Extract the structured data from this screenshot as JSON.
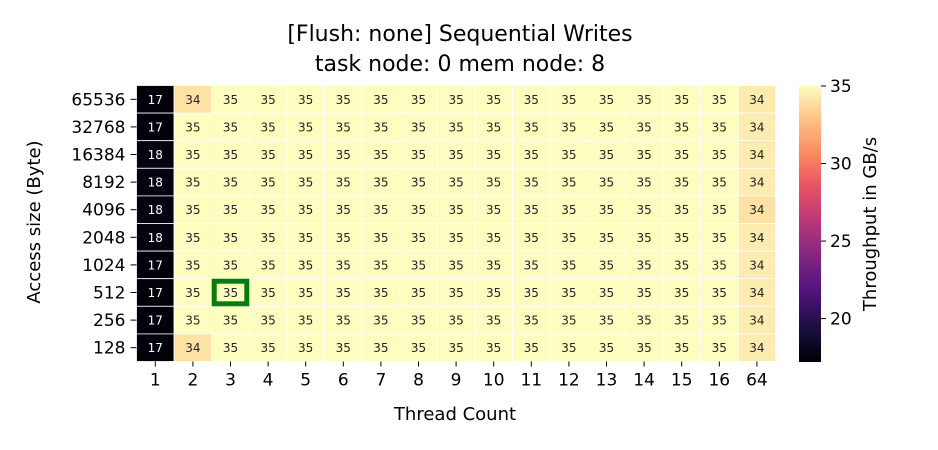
{
  "chart_data": {
    "type": "heatmap",
    "title": "[Flush: none] Sequential Writes",
    "subtitle": "task node: 0 mem node: 8",
    "xlabel": "Thread Count",
    "ylabel": "Access size (Byte)",
    "x_categories": [
      "1",
      "2",
      "3",
      "4",
      "5",
      "6",
      "7",
      "8",
      "9",
      "10",
      "11",
      "12",
      "13",
      "14",
      "15",
      "16",
      "64"
    ],
    "y_categories": [
      "65536",
      "32768",
      "16384",
      "8192",
      "4096",
      "2048",
      "1024",
      "512",
      "256",
      "128"
    ],
    "values": [
      [
        17.4,
        34.0,
        35.0,
        35.0,
        35.0,
        35.0,
        35.0,
        35.0,
        35.0,
        35.0,
        35.0,
        35.0,
        35.0,
        35.0,
        35.0,
        35.0,
        34.3
      ],
      [
        17.4,
        35.0,
        35.0,
        35.0,
        35.0,
        35.0,
        35.0,
        35.0,
        35.0,
        35.0,
        35.0,
        35.0,
        35.0,
        35.0,
        35.0,
        35.0,
        34.4
      ],
      [
        17.6,
        35.0,
        35.0,
        35.0,
        35.0,
        35.0,
        35.0,
        35.0,
        35.0,
        35.0,
        35.0,
        35.0,
        35.0,
        35.0,
        35.0,
        35.0,
        34.4
      ],
      [
        17.6,
        35.0,
        35.0,
        35.0,
        35.0,
        35.0,
        35.0,
        35.0,
        35.0,
        35.0,
        35.0,
        35.0,
        35.0,
        35.0,
        35.0,
        35.0,
        34.4
      ],
      [
        17.6,
        35.0,
        35.0,
        35.0,
        35.0,
        35.0,
        35.0,
        35.0,
        35.0,
        35.0,
        35.0,
        35.0,
        35.0,
        35.0,
        35.0,
        35.0,
        34.0
      ],
      [
        17.6,
        35.0,
        35.0,
        35.0,
        35.0,
        35.0,
        35.0,
        35.0,
        35.0,
        35.0,
        35.0,
        35.0,
        35.0,
        35.0,
        35.0,
        35.0,
        34.4
      ],
      [
        17.4,
        35.0,
        35.0,
        35.0,
        35.0,
        35.0,
        35.0,
        35.0,
        35.0,
        35.0,
        35.0,
        35.0,
        35.0,
        35.0,
        35.0,
        35.0,
        34.4
      ],
      [
        17.4,
        35.0,
        35.0,
        35.0,
        35.0,
        35.0,
        35.0,
        35.0,
        35.0,
        35.0,
        35.0,
        35.0,
        35.0,
        35.0,
        35.0,
        35.0,
        34.4
      ],
      [
        17.4,
        35.0,
        35.0,
        35.0,
        35.0,
        35.0,
        35.0,
        35.0,
        35.0,
        35.0,
        35.0,
        35.0,
        35.0,
        35.0,
        35.0,
        35.0,
        34.4
      ],
      [
        17.4,
        34.0,
        35.0,
        35.0,
        35.0,
        35.0,
        35.0,
        35.0,
        35.0,
        35.0,
        35.0,
        35.0,
        35.0,
        35.0,
        35.0,
        35.0,
        34.4
      ]
    ],
    "cell_labels": [
      [
        "17",
        "34",
        "35",
        "35",
        "35",
        "35",
        "35",
        "35",
        "35",
        "35",
        "35",
        "35",
        "35",
        "35",
        "35",
        "35",
        "34"
      ],
      [
        "17",
        "35",
        "35",
        "35",
        "35",
        "35",
        "35",
        "35",
        "35",
        "35",
        "35",
        "35",
        "35",
        "35",
        "35",
        "35",
        "34"
      ],
      [
        "18",
        "35",
        "35",
        "35",
        "35",
        "35",
        "35",
        "35",
        "35",
        "35",
        "35",
        "35",
        "35",
        "35",
        "35",
        "35",
        "34"
      ],
      [
        "18",
        "35",
        "35",
        "35",
        "35",
        "35",
        "35",
        "35",
        "35",
        "35",
        "35",
        "35",
        "35",
        "35",
        "35",
        "35",
        "34"
      ],
      [
        "18",
        "35",
        "35",
        "35",
        "35",
        "35",
        "35",
        "35",
        "35",
        "35",
        "35",
        "35",
        "35",
        "35",
        "35",
        "35",
        "34"
      ],
      [
        "18",
        "35",
        "35",
        "35",
        "35",
        "35",
        "35",
        "35",
        "35",
        "35",
        "35",
        "35",
        "35",
        "35",
        "35",
        "35",
        "34"
      ],
      [
        "17",
        "35",
        "35",
        "35",
        "35",
        "35",
        "35",
        "35",
        "35",
        "35",
        "35",
        "35",
        "35",
        "35",
        "35",
        "35",
        "34"
      ],
      [
        "17",
        "35",
        "35",
        "35",
        "35",
        "35",
        "35",
        "35",
        "35",
        "35",
        "35",
        "35",
        "35",
        "35",
        "35",
        "35",
        "34"
      ],
      [
        "17",
        "35",
        "35",
        "35",
        "35",
        "35",
        "35",
        "35",
        "35",
        "35",
        "35",
        "35",
        "35",
        "35",
        "35",
        "35",
        "34"
      ],
      [
        "17",
        "34",
        "35",
        "35",
        "35",
        "35",
        "35",
        "35",
        "35",
        "35",
        "35",
        "35",
        "35",
        "35",
        "35",
        "35",
        "34"
      ]
    ],
    "highlight": {
      "x": "3",
      "y": "512",
      "color": "#0a7a0a"
    },
    "colorbar": {
      "label": "Throughput in GB/s",
      "range": [
        17.2,
        35.0
      ],
      "ticks": [
        20,
        25,
        30,
        35
      ],
      "colormap": "magma"
    },
    "grid": false
  }
}
